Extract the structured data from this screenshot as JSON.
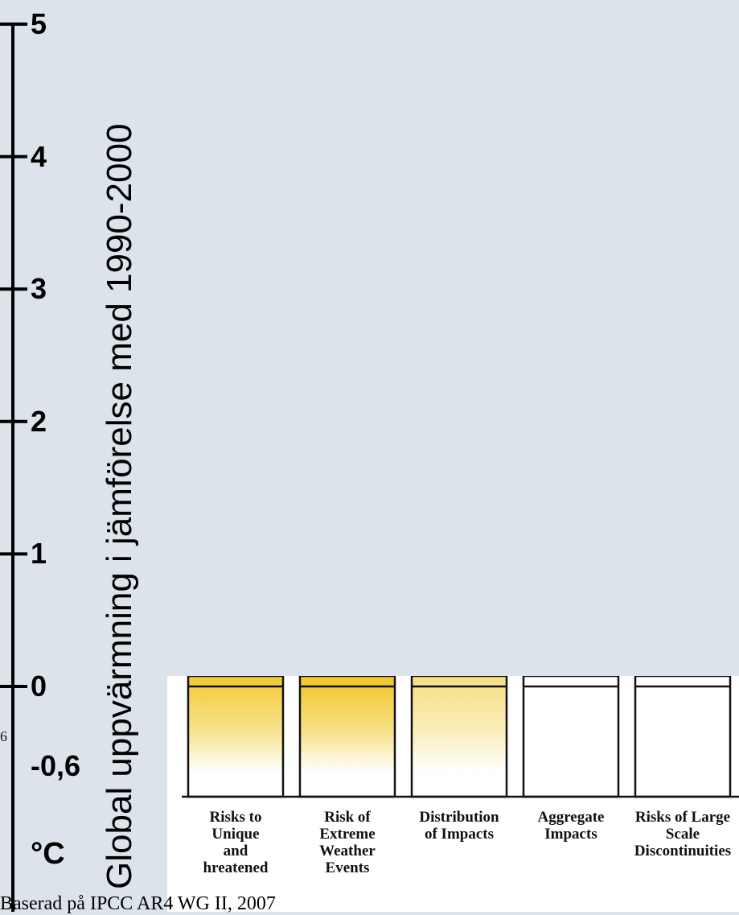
{
  "chart_data": {
    "type": "bar",
    "ylabel": "Global  uppvärmning i jämförelse med 1990-2000",
    "unit": "°C",
    "yticks": [
      "5",
      "4",
      "3",
      "2",
      "1",
      "0",
      "-0,6"
    ],
    "ytick_values": [
      5,
      4,
      3,
      2,
      1,
      0,
      -0.6
    ],
    "ylim": [
      -0.6,
      5
    ],
    "panel_tick": "6",
    "categories": [
      "Risks to Unique and Threatened",
      "Risk of Extreme Weather Events",
      "Distribution of Impacts",
      "Aggregate Impacts",
      "Risks of Large Scale Discontinuities"
    ],
    "category_lines": [
      [
        "Risks to",
        "Unique",
        "and",
        "hreatened"
      ],
      [
        "Risk of",
        "Extreme",
        "Weather",
        "Events"
      ],
      [
        "Distribution",
        "of Impacts"
      ],
      [
        "Aggregate",
        "Impacts"
      ],
      [
        "Risks of Large",
        "Scale",
        "Discontinuities"
      ]
    ],
    "shading_strength": [
      0.9,
      0.95,
      0.55,
      0.0,
      0.0
    ],
    "colors": {
      "background": "#dce3eb",
      "shade": "#f0c419",
      "panel": "#ffffff"
    }
  },
  "caption": "Baserad på IPCC AR4 WG II, 2007"
}
